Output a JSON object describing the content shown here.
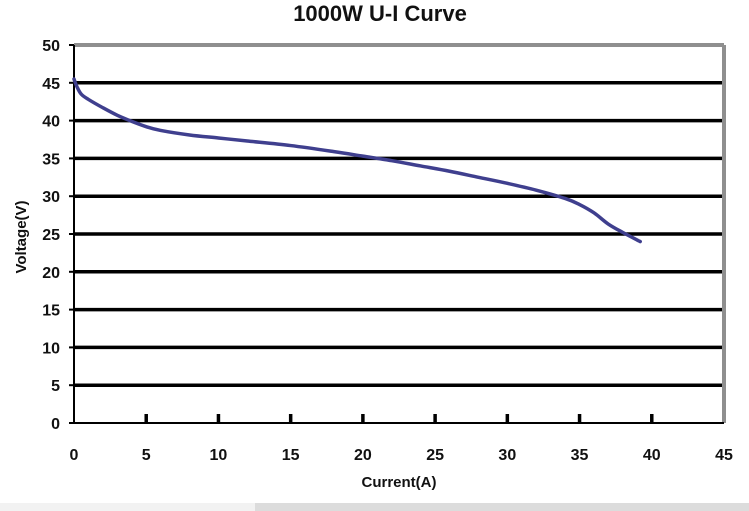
{
  "chart_data": {
    "type": "line",
    "title": "1000W U-I Curve",
    "xlabel": "Current(A)",
    "ylabel": "Voltage(V)",
    "xlim": [
      0,
      45
    ],
    "ylim": [
      0,
      50
    ],
    "x_ticks": [
      0,
      5,
      10,
      15,
      20,
      25,
      30,
      35,
      40,
      45
    ],
    "y_ticks": [
      0,
      5,
      10,
      15,
      20,
      25,
      30,
      35,
      40,
      45,
      50
    ],
    "x_tick_labels": [
      "0",
      "5",
      "10",
      "15",
      "20",
      "25",
      "30",
      "35",
      "40",
      "45"
    ],
    "y_tick_labels": [
      "0",
      "5",
      "10",
      "15",
      "20",
      "25",
      "30",
      "35",
      "40",
      "45",
      "50"
    ],
    "grid": "horizontal",
    "legend": "none",
    "line_color": "#3f3f8e",
    "series": [
      {
        "x": [
          0.0,
          0.2,
          0.5,
          1.0,
          2.0,
          3.0,
          4.0,
          5.0,
          6.0,
          8.0,
          10.0,
          12.0,
          15.0,
          18.0,
          20.0,
          22.0,
          24.0,
          26.0,
          28.0,
          30.0,
          32.0,
          34.0,
          35.0,
          36.0,
          37.0,
          38.0,
          39.2
        ],
        "y": [
          45.5,
          44.5,
          43.5,
          42.8,
          41.7,
          40.7,
          39.9,
          39.2,
          38.7,
          38.1,
          37.7,
          37.3,
          36.7,
          35.9,
          35.3,
          34.7,
          34.0,
          33.3,
          32.5,
          31.7,
          30.8,
          29.7,
          28.9,
          27.8,
          26.3,
          25.2,
          24.0
        ]
      }
    ]
  }
}
